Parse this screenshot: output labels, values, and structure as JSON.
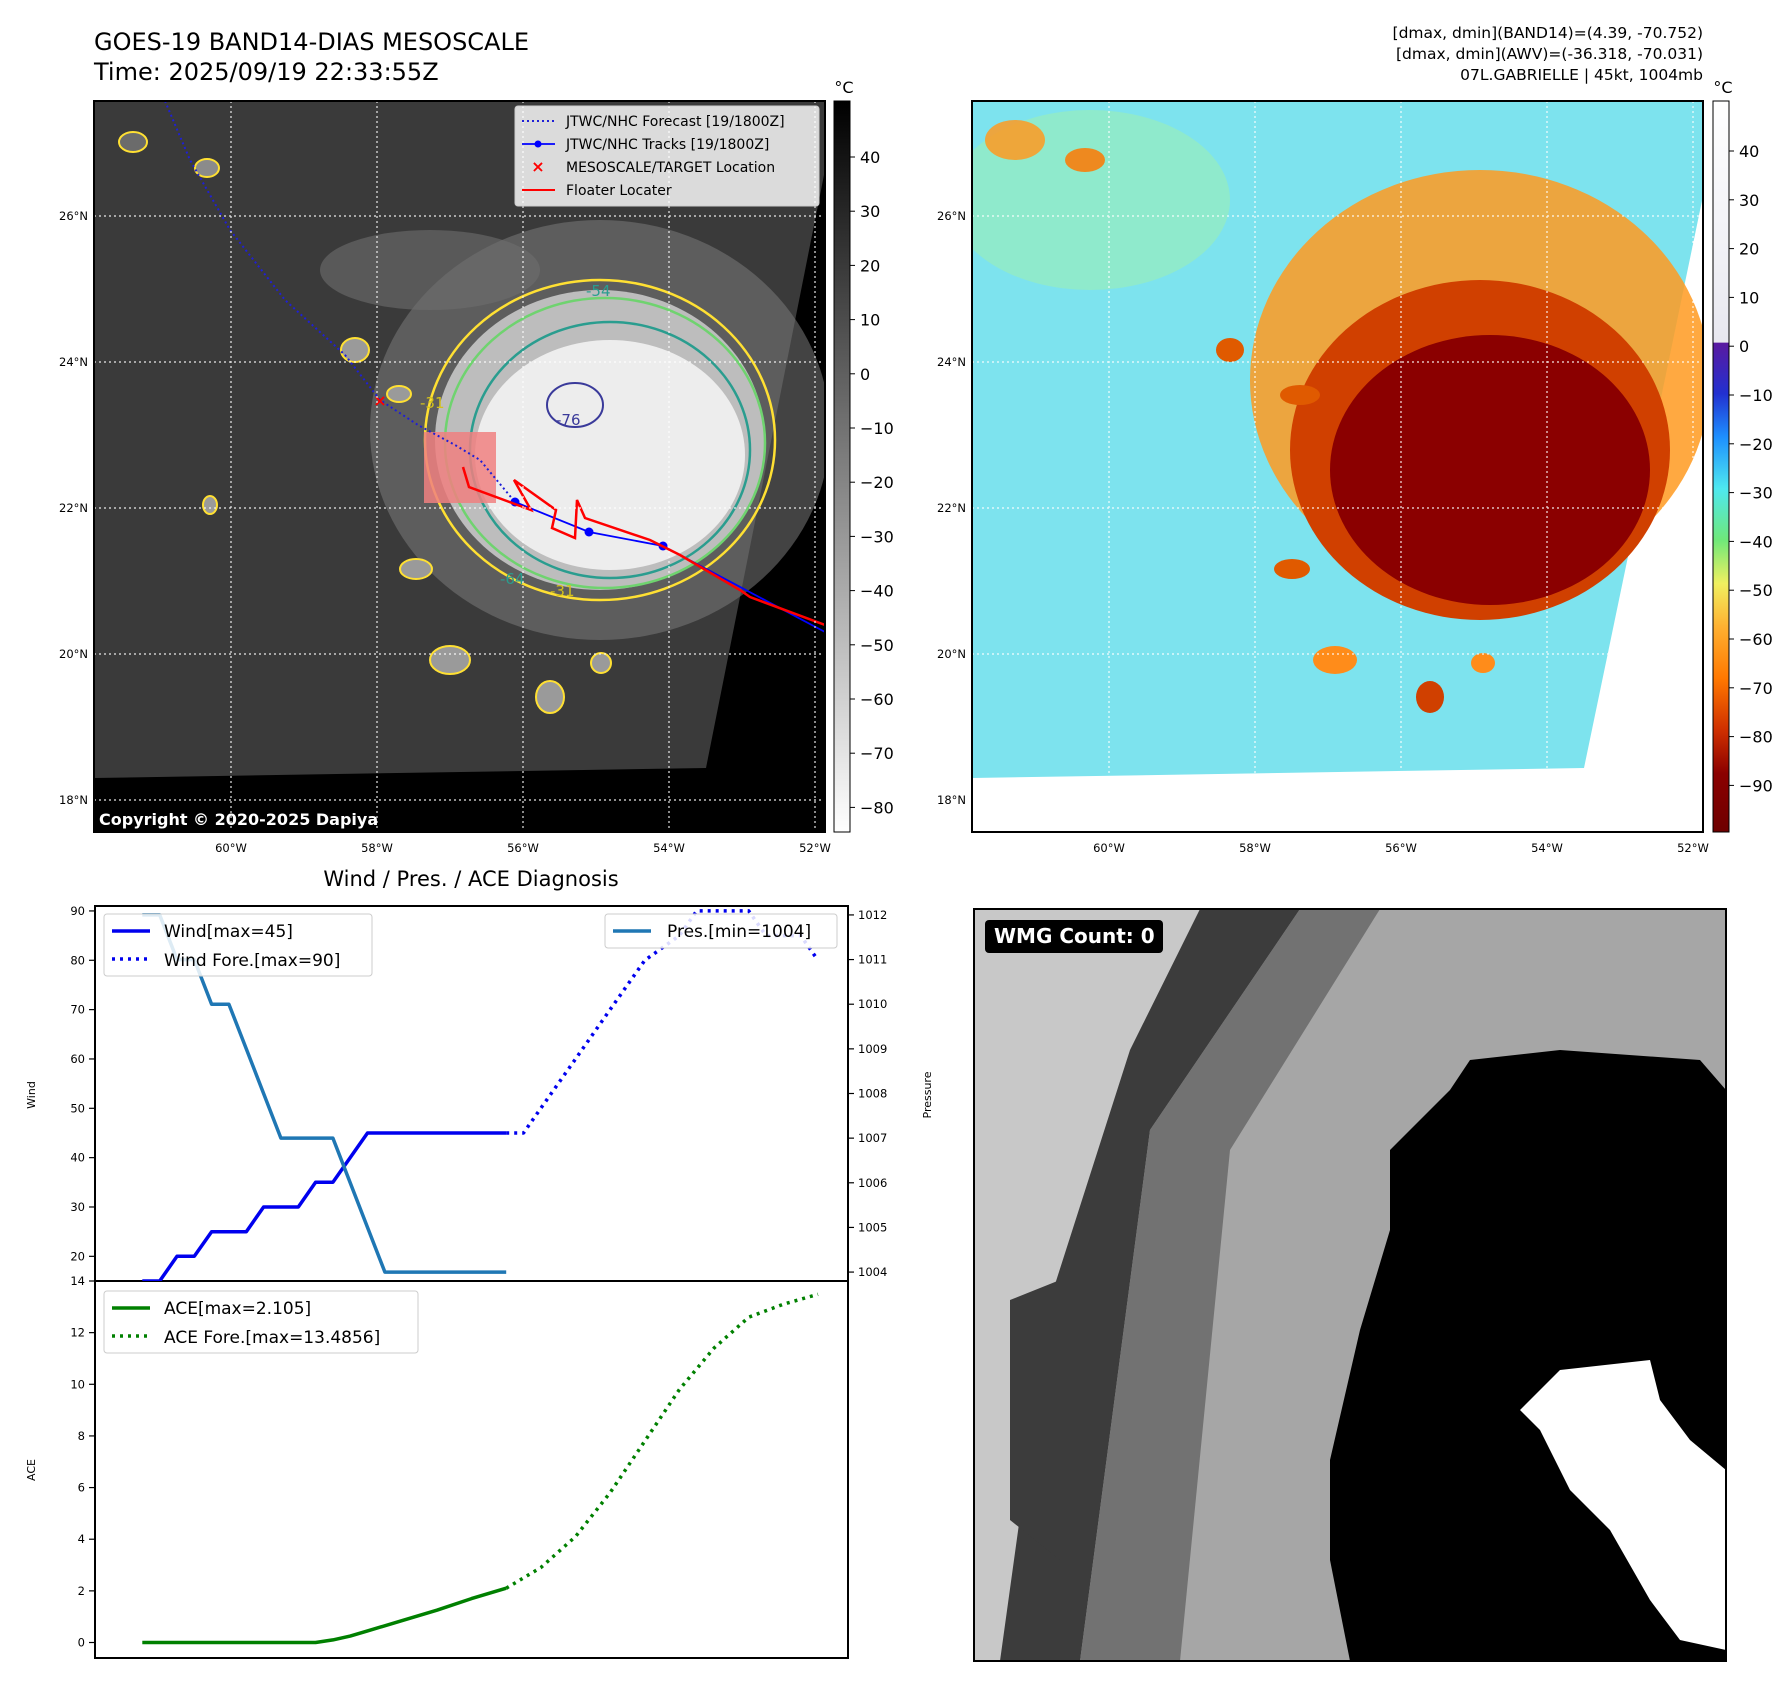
{
  "header": {
    "title_line1": "GOES-19 BAND14-DIAS MESOSCALE",
    "title_line2": "Time: 2025/09/19 22:33:55Z",
    "info_line1": "[dmax, dmin](BAND14)=(4.39, -70.752)",
    "info_line2": "[dmax, dmin](AWV)=(-36.318, -70.031)",
    "info_line3": "07L.GABRIELLE | 45kt, 1004mb"
  },
  "maps": {
    "lon_labels": [
      "60°W",
      "58°W",
      "56°W",
      "54°W",
      "52°W"
    ],
    "lat_labels": [
      "26°N",
      "24°N",
      "22°N",
      "20°N",
      "18°N"
    ],
    "colorbar_unit": "°C",
    "ir_colorbar_ticks": [
      "40",
      "30",
      "20",
      "10",
      "0",
      "−10",
      "−20",
      "−30",
      "−40",
      "−50",
      "−60",
      "−70",
      "−80"
    ],
    "awv_colorbar_ticks": [
      "40",
      "30",
      "20",
      "10",
      "0",
      "−10",
      "−20",
      "−30",
      "−40",
      "−50",
      "−60",
      "−70",
      "−80",
      "−90"
    ],
    "copyright": "Copyright © 2020-2025 Dapiya",
    "contour_labels": [
      "-54",
      "-31",
      "-76",
      "-64",
      "-31"
    ],
    "legend": [
      "JTWC/NHC Forecast [19/1800Z]",
      "JTWC/NHC Tracks [19/1800Z]",
      "MESOSCALE/TARGET Location",
      "Floater Locater"
    ],
    "colors": {
      "forecast": "#1f1fd6",
      "track": "#0000ff",
      "target": "#ff0000",
      "floater": "#ff0000",
      "contour_warm": "#ffe033",
      "contour_mid": "#6fd36f",
      "contour_cold": "#2a9d8f"
    }
  },
  "wmg": {
    "label": "WMG Count: 0"
  },
  "chart_data": [
    {
      "type": "line",
      "title": "Wind / Pres. / ACE Diagnosis",
      "ylabel": "Wind",
      "ylabel_right": "Pressure",
      "ylim": [
        15,
        91
      ],
      "ylim_right": [
        1003.8,
        1012.2
      ],
      "yticks": [
        20,
        30,
        40,
        50,
        60,
        70,
        80,
        90
      ],
      "yticks_right": [
        1004,
        1005,
        1006,
        1007,
        1008,
        1009,
        1010,
        1011,
        1012
      ],
      "xlim": [
        0,
        40
      ],
      "legend_left": [
        "Wind[max=45]",
        "Wind Fore.[max=90]"
      ],
      "legend_right": [
        "Pres.[min=1004]"
      ],
      "series": [
        {
          "name": "Wind[max=45]",
          "color": "#0000ee",
          "style": "solid",
          "x": [
            1,
            2,
            3,
            4,
            5,
            6,
            7,
            8,
            9,
            10,
            11,
            12,
            13,
            14,
            15,
            16,
            17,
            18,
            19,
            20,
            21,
            22
          ],
          "values": [
            15,
            15,
            20,
            20,
            25,
            25,
            25,
            30,
            30,
            30,
            35,
            35,
            40,
            45,
            45,
            45,
            45,
            45,
            45,
            45,
            45,
            45
          ]
        },
        {
          "name": "Wind Fore.[max=90]",
          "color": "#0000ee",
          "style": "dotted",
          "x": [
            22,
            23,
            24,
            26,
            28,
            30,
            32,
            33,
            34,
            36,
            37,
            38,
            39,
            40
          ],
          "values": [
            45,
            45,
            50,
            60,
            70,
            80,
            85,
            90,
            90,
            90,
            85,
            85,
            85,
            80
          ]
        },
        {
          "name": "Pres.[min=1004]",
          "color": "#1f77b4",
          "style": "solid",
          "axis": "right",
          "x": [
            1,
            2,
            3,
            4,
            5,
            6,
            7,
            8,
            9,
            10,
            11,
            12,
            13,
            14,
            15,
            16,
            17,
            18,
            19,
            20,
            21,
            22
          ],
          "values": [
            1012,
            1012,
            1011,
            1011,
            1010,
            1010,
            1009,
            1008,
            1007,
            1007,
            1007,
            1007,
            1006,
            1005,
            1004,
            1004,
            1004,
            1004,
            1004,
            1004,
            1004,
            1004
          ]
        }
      ]
    },
    {
      "type": "line",
      "ylabel": "ACE",
      "ylim": [
        -0.6,
        14
      ],
      "yticks": [
        0,
        2,
        4,
        6,
        8,
        10,
        12,
        14
      ],
      "xlim": [
        0,
        40
      ],
      "legend": [
        "ACE[max=2.105]",
        "ACE Fore.[max=13.4856]"
      ],
      "series": [
        {
          "name": "ACE[max=2.105]",
          "color": "#008000",
          "style": "solid",
          "x": [
            1,
            4,
            8,
            11,
            12,
            13,
            14,
            16,
            18,
            20,
            22
          ],
          "values": [
            0,
            0,
            0,
            0,
            0.1,
            0.25,
            0.45,
            0.85,
            1.25,
            1.7,
            2.105
          ]
        },
        {
          "name": "ACE Fore.[max=13.4856]",
          "color": "#008000",
          "style": "dotted",
          "x": [
            22,
            24,
            26,
            28,
            30,
            32,
            34,
            36,
            38,
            40
          ],
          "values": [
            2.105,
            2.9,
            4.1,
            5.8,
            7.8,
            9.8,
            11.4,
            12.6,
            13.1,
            13.4856
          ]
        }
      ]
    }
  ]
}
